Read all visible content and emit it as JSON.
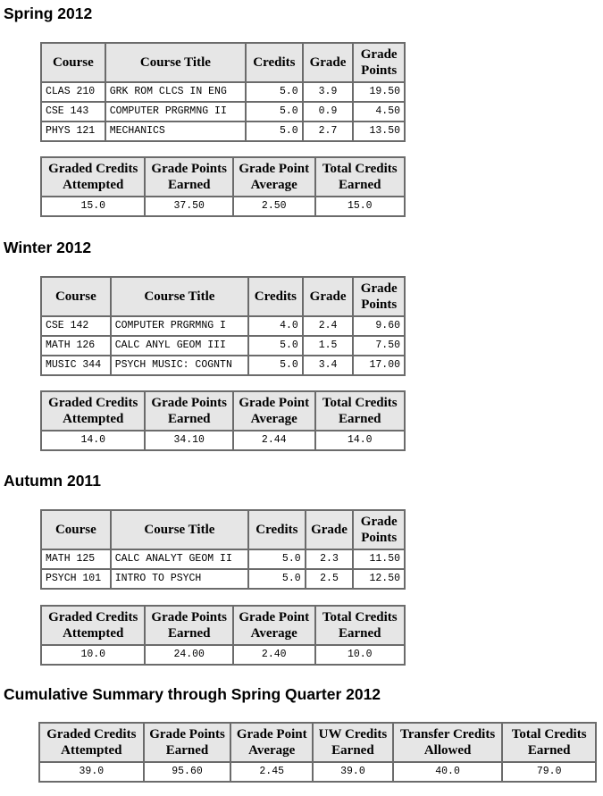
{
  "course_headers": [
    "Course",
    "Course Title",
    "Credits",
    "Grade",
    "Grade Points"
  ],
  "summary_headers": [
    "Graded Credits Attempted",
    "Grade Points Earned",
    "Grade Point Average",
    "Total Credits Earned"
  ],
  "quarters": [
    {
      "title": "Spring 2012",
      "courses": [
        {
          "course": "CLAS 210",
          "title": "GRK ROM CLCS IN ENG",
          "credits": "5.0",
          "grade": "3.9",
          "points": "19.50"
        },
        {
          "course": "CSE 143",
          "title": "COMPUTER PRGRMNG II",
          "credits": "5.0",
          "grade": "0.9",
          "points": "4.50"
        },
        {
          "course": "PHYS 121",
          "title": "MECHANICS",
          "credits": "5.0",
          "grade": "2.7",
          "points": "13.50"
        }
      ],
      "summary": [
        "15.0",
        "37.50",
        "2.50",
        "15.0"
      ]
    },
    {
      "title": "Winter 2012",
      "courses": [
        {
          "course": "CSE 142",
          "title": "COMPUTER PRGRMNG I",
          "credits": "4.0",
          "grade": "2.4",
          "points": "9.60"
        },
        {
          "course": "MATH 126",
          "title": "CALC ANYL GEOM III",
          "credits": "5.0",
          "grade": "1.5",
          "points": "7.50"
        },
        {
          "course": "MUSIC 344",
          "title": "PSYCH MUSIC: COGNTN",
          "credits": "5.0",
          "grade": "3.4",
          "points": "17.00"
        }
      ],
      "summary": [
        "14.0",
        "34.10",
        "2.44",
        "14.0"
      ]
    },
    {
      "title": "Autumn 2011",
      "courses": [
        {
          "course": "MATH 125",
          "title": "CALC ANALYT GEOM II",
          "credits": "5.0",
          "grade": "2.3",
          "points": "11.50"
        },
        {
          "course": "PSYCH 101",
          "title": "INTRO TO PSYCH",
          "credits": "5.0",
          "grade": "2.5",
          "points": "12.50"
        }
      ],
      "summary": [
        "10.0",
        "24.00",
        "2.40",
        "10.0"
      ]
    }
  ],
  "cumulative": {
    "title": "Cumulative Summary through Spring Quarter 2012",
    "headers": [
      "Graded Credits Attempted",
      "Grade Points Earned",
      "Grade Point Average",
      "UW Credits Earned",
      "Transfer Credits Allowed",
      "Total Credits Earned"
    ],
    "values": [
      "39.0",
      "95.60",
      "2.45",
      "39.0",
      "40.0",
      "79.0"
    ]
  }
}
